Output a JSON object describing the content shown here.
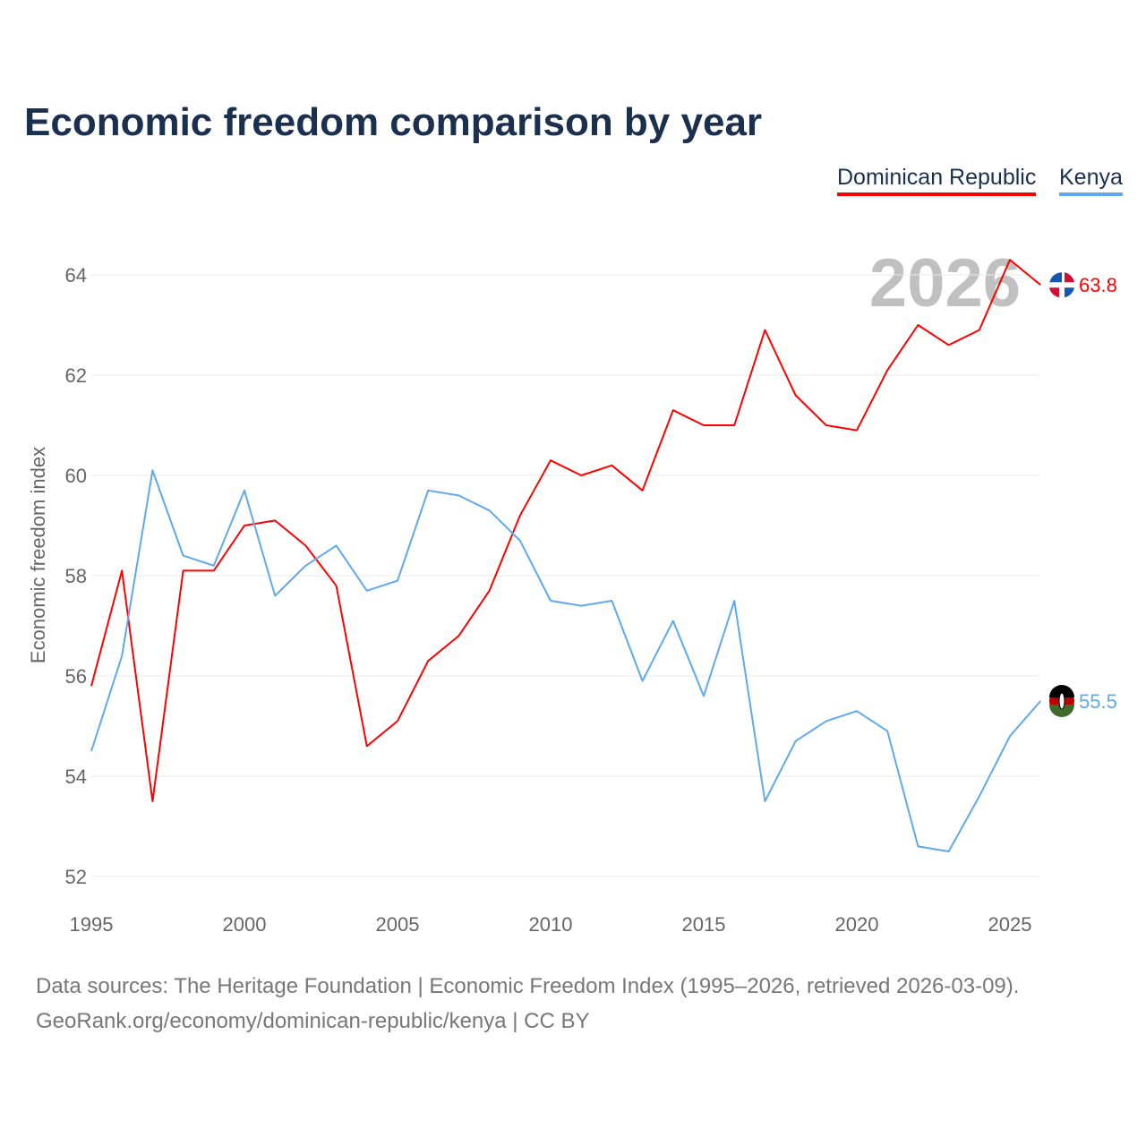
{
  "chart_data": {
    "type": "line",
    "title": "Economic freedom comparison by year",
    "ylabel": "Economic freedom index",
    "xlabel": "",
    "ylim": [
      52,
      64.6
    ],
    "xlim": [
      1995,
      2026
    ],
    "yticks": [
      52,
      54,
      56,
      58,
      60,
      62,
      64
    ],
    "xticks": [
      1995,
      2000,
      2005,
      2010,
      2015,
      2020,
      2025
    ],
    "grid": true,
    "legend_position": "top-right",
    "year_watermark": "2026",
    "x": [
      1995,
      1996,
      1997,
      1998,
      1999,
      2000,
      2001,
      2002,
      2003,
      2004,
      2005,
      2006,
      2007,
      2008,
      2009,
      2010,
      2011,
      2012,
      2013,
      2014,
      2015,
      2016,
      2017,
      2018,
      2019,
      2020,
      2021,
      2022,
      2023,
      2024,
      2025,
      2026
    ],
    "series": [
      {
        "name": "Dominican Republic",
        "color": "#ff0000",
        "end_label": "63.8",
        "values": [
          55.8,
          58.1,
          53.5,
          58.1,
          58.1,
          59.0,
          59.1,
          58.6,
          57.8,
          54.6,
          55.1,
          56.3,
          56.8,
          57.7,
          59.2,
          60.3,
          60.0,
          60.2,
          59.7,
          61.3,
          61.0,
          61.0,
          62.9,
          61.6,
          61.0,
          60.9,
          62.1,
          63.0,
          62.6,
          62.9,
          64.3,
          63.8
        ]
      },
      {
        "name": "Kenya",
        "color": "#5fa8ee",
        "end_label": "55.5",
        "values": [
          54.5,
          56.4,
          60.1,
          58.4,
          58.2,
          59.7,
          57.6,
          58.2,
          58.6,
          57.7,
          57.9,
          59.7,
          59.6,
          59.3,
          58.7,
          57.5,
          57.4,
          57.5,
          55.9,
          57.1,
          55.6,
          57.5,
          53.5,
          54.7,
          55.1,
          55.3,
          54.9,
          52.6,
          52.5,
          53.6,
          54.8,
          55.5
        ]
      }
    ]
  },
  "footer": {
    "line1": "Data sources: The Heritage Foundation | Economic Freedom Index (1995–2026, retrieved 2026-03-09).",
    "line2": "GeoRank.org/economy/dominican-republic/kenya | CC BY"
  }
}
